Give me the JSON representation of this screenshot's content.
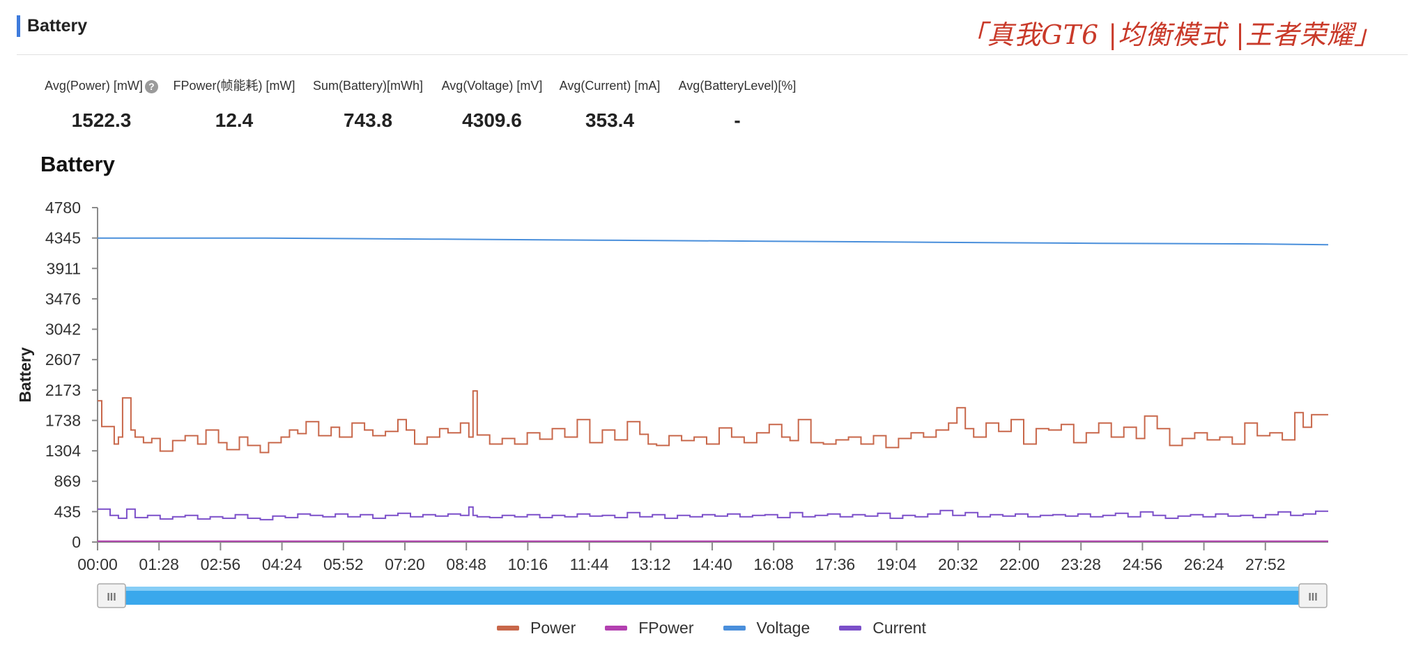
{
  "header": {
    "title": "Battery",
    "watermark": "「真我GT6 |均衡模式 |王者荣耀」"
  },
  "metrics": [
    {
      "label": "Avg(Power) [mW]",
      "value": "1522.3",
      "help": true
    },
    {
      "label": "FPower(帧能耗) [mW]",
      "value": "12.4"
    },
    {
      "label": "Sum(Battery)[mWh]",
      "value": "743.8"
    },
    {
      "label": "Avg(Voltage) [mV]",
      "value": "4309.6"
    },
    {
      "label": "Avg(Current) [mA]",
      "value": "353.4"
    },
    {
      "label": "Avg(BatteryLevel)[%]",
      "value": "-"
    }
  ],
  "chart_data": {
    "type": "line",
    "title": "Battery",
    "ylabel": "Battery",
    "xlabel": "",
    "ylim": [
      0,
      4780
    ],
    "y_ticks": [
      "4780",
      "4345",
      "3911",
      "3476",
      "3042",
      "2607",
      "2173",
      "1738",
      "1304",
      "869",
      "435",
      "0"
    ],
    "x_ticks": [
      "00:00",
      "01:28",
      "02:56",
      "04:24",
      "05:52",
      "07:20",
      "08:48",
      "10:16",
      "11:44",
      "13:12",
      "14:40",
      "16:08",
      "17:36",
      "19:04",
      "20:32",
      "22:00",
      "23:28",
      "24:56",
      "26:24",
      "27:52"
    ],
    "x_range_min": [
      0,
      29.5
    ],
    "legend_position": "bottom",
    "grid": false,
    "series": [
      {
        "name": "Power",
        "color": "#c8674a",
        "x_min": [
          0,
          0.1,
          0.4,
          0.5,
          0.6,
          0.8,
          0.9,
          1.1,
          1.3,
          1.5,
          1.8,
          2.1,
          2.4,
          2.6,
          2.9,
          3.1,
          3.4,
          3.6,
          3.9,
          4.1,
          4.4,
          4.6,
          4.8,
          5.0,
          5.3,
          5.6,
          5.8,
          6.1,
          6.4,
          6.6,
          6.9,
          7.2,
          7.4,
          7.6,
          7.9,
          8.2,
          8.4,
          8.7,
          8.9,
          9.0,
          9.1,
          9.4,
          9.7,
          10.0,
          10.3,
          10.6,
          10.9,
          11.2,
          11.5,
          11.8,
          12.1,
          12.4,
          12.7,
          13.0,
          13.2,
          13.4,
          13.7,
          14.0,
          14.3,
          14.6,
          14.9,
          15.2,
          15.5,
          15.8,
          16.1,
          16.4,
          16.6,
          16.8,
          17.1,
          17.4,
          17.7,
          18.0,
          18.3,
          18.6,
          18.9,
          19.2,
          19.5,
          19.8,
          20.1,
          20.4,
          20.6,
          20.8,
          21.0,
          21.3,
          21.6,
          21.9,
          22.2,
          22.5,
          22.8,
          23.1,
          23.4,
          23.7,
          24.0,
          24.3,
          24.6,
          24.9,
          25.1,
          25.4,
          25.7,
          26.0,
          26.3,
          26.6,
          26.9,
          27.2,
          27.5,
          27.8,
          28.1,
          28.4,
          28.7,
          28.9,
          29.1,
          29.3,
          29.5
        ],
        "values": [
          2020,
          1650,
          1400,
          1500,
          2060,
          1600,
          1500,
          1420,
          1480,
          1300,
          1450,
          1520,
          1400,
          1600,
          1420,
          1320,
          1500,
          1380,
          1280,
          1420,
          1500,
          1600,
          1550,
          1720,
          1520,
          1640,
          1500,
          1700,
          1600,
          1520,
          1580,
          1750,
          1600,
          1400,
          1500,
          1620,
          1560,
          1700,
          1500,
          2160,
          1530,
          1400,
          1480,
          1400,
          1560,
          1470,
          1620,
          1500,
          1750,
          1420,
          1600,
          1460,
          1720,
          1540,
          1400,
          1380,
          1520,
          1450,
          1500,
          1400,
          1630,
          1500,
          1420,
          1560,
          1680,
          1500,
          1450,
          1750,
          1420,
          1400,
          1460,
          1500,
          1400,
          1520,
          1350,
          1480,
          1560,
          1500,
          1600,
          1700,
          1920,
          1620,
          1500,
          1700,
          1580,
          1750,
          1400,
          1620,
          1600,
          1680,
          1420,
          1560,
          1700,
          1500,
          1640,
          1480,
          1800,
          1620,
          1380,
          1480,
          1560,
          1460,
          1500,
          1400,
          1700,
          1520,
          1560,
          1460,
          1850,
          1640,
          1820,
          1820,
          1820
        ]
      },
      {
        "name": "FPower",
        "color": "#b340b0",
        "x_min": [
          0,
          29.5
        ],
        "values": [
          12.4,
          12.4
        ]
      },
      {
        "name": "Voltage",
        "color": "#4a8fdb",
        "x_min": [
          0,
          4,
          8,
          12,
          16,
          20,
          24,
          28,
          29.5
        ],
        "values": [
          4345,
          4345,
          4330,
          4315,
          4300,
          4285,
          4270,
          4260,
          4250
        ]
      },
      {
        "name": "Current",
        "color": "#7b4fc9",
        "x_min": [
          0,
          0.3,
          0.5,
          0.7,
          0.9,
          1.2,
          1.5,
          1.8,
          2.1,
          2.4,
          2.7,
          3.0,
          3.3,
          3.6,
          3.9,
          4.2,
          4.5,
          4.8,
          5.1,
          5.4,
          5.7,
          6.0,
          6.3,
          6.6,
          6.9,
          7.2,
          7.5,
          7.8,
          8.1,
          8.4,
          8.7,
          8.9,
          9.0,
          9.1,
          9.4,
          9.7,
          10.0,
          10.3,
          10.6,
          10.9,
          11.2,
          11.5,
          11.8,
          12.1,
          12.4,
          12.7,
          13.0,
          13.3,
          13.6,
          13.9,
          14.2,
          14.5,
          14.8,
          15.1,
          15.4,
          15.7,
          16.0,
          16.3,
          16.6,
          16.9,
          17.2,
          17.5,
          17.8,
          18.1,
          18.4,
          18.7,
          19.0,
          19.3,
          19.6,
          19.9,
          20.2,
          20.5,
          20.8,
          21.1,
          21.4,
          21.7,
          22.0,
          22.3,
          22.6,
          22.9,
          23.2,
          23.5,
          23.8,
          24.1,
          24.4,
          24.7,
          25.0,
          25.3,
          25.6,
          25.9,
          26.2,
          26.5,
          26.8,
          27.1,
          27.4,
          27.7,
          28.0,
          28.3,
          28.6,
          28.9,
          29.2,
          29.5
        ],
        "values": [
          470,
          380,
          340,
          470,
          350,
          380,
          330,
          360,
          380,
          330,
          360,
          340,
          390,
          340,
          320,
          370,
          350,
          400,
          380,
          360,
          400,
          360,
          390,
          340,
          380,
          410,
          360,
          390,
          370,
          400,
          380,
          500,
          380,
          360,
          350,
          380,
          360,
          390,
          350,
          380,
          360,
          400,
          370,
          380,
          350,
          420,
          360,
          390,
          340,
          380,
          360,
          390,
          370,
          400,
          360,
          380,
          390,
          350,
          420,
          360,
          380,
          400,
          360,
          390,
          370,
          410,
          340,
          380,
          360,
          400,
          450,
          380,
          420,
          360,
          390,
          370,
          400,
          360,
          380,
          390,
          370,
          400,
          360,
          380,
          410,
          360,
          430,
          380,
          340,
          370,
          390,
          360,
          400,
          370,
          380,
          350,
          390,
          430,
          380,
          400,
          440,
          440
        ]
      }
    ]
  },
  "slider": {
    "left_handle": "III",
    "right_handle": "III"
  }
}
